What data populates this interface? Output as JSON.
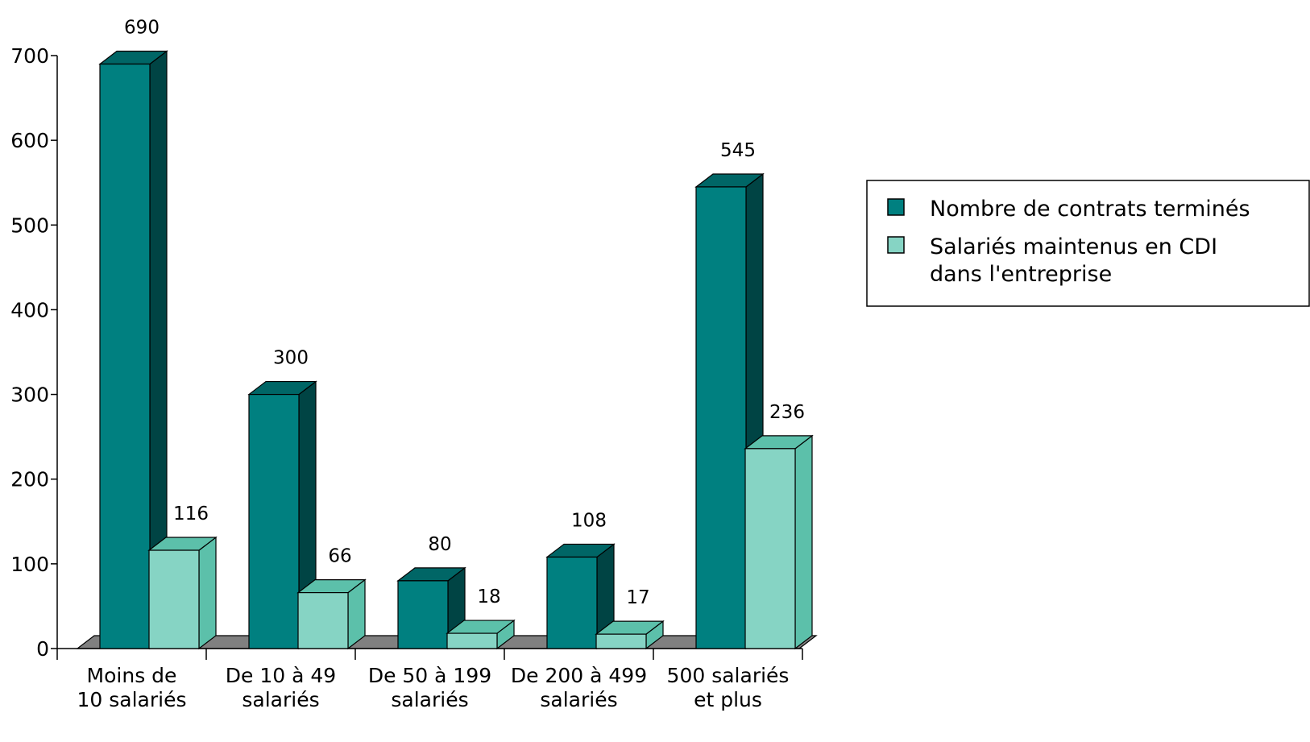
{
  "chart_data": {
    "type": "bar",
    "categories": [
      [
        "Moins de",
        "10 salariés"
      ],
      [
        "De 10 à 49",
        "salariés"
      ],
      [
        "De 50 à 199",
        "salariés"
      ],
      [
        "De 200 à 499",
        "salariés"
      ],
      [
        "500 salariés",
        "et plus"
      ]
    ],
    "series": [
      {
        "name": "Nombre de contrats terminés",
        "values": [
          690,
          300,
          80,
          108,
          545
        ],
        "value_labels": [
          "690",
          "300",
          "80",
          "108",
          "545"
        ],
        "colors": {
          "front": "#008080",
          "top": "#006666",
          "side": "#004444"
        }
      },
      {
        "name": "Salariés maintenus en CDI dans l'entreprise",
        "legend_lines": [
          "Salariés maintenus en CDI",
          "dans l'entreprise"
        ],
        "values": [
          116,
          66,
          18,
          17,
          236
        ],
        "value_labels": [
          "116",
          "66",
          "18",
          "17",
          "236"
        ],
        "colors": {
          "front": "#86D4C4",
          "top": "#5CC0AA",
          "side": "#5CC0AA"
        }
      }
    ],
    "yticks": [
      0,
      100,
      200,
      300,
      400,
      500,
      600,
      700
    ],
    "ytick_labels": [
      "0",
      "100",
      "200",
      "300",
      "400",
      "500",
      "600",
      "700"
    ],
    "ylim": [
      0,
      700
    ],
    "grid": false,
    "legend_position": "right",
    "floor_color": "#808080",
    "title": "",
    "xlabel": "",
    "ylabel": ""
  }
}
